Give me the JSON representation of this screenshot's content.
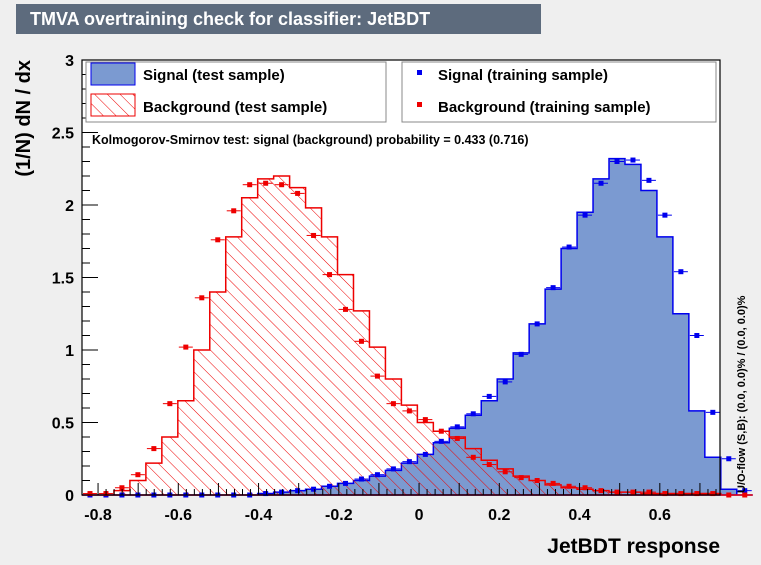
{
  "title": "TMVA overtraining check for classifier: JetBDT",
  "chart_data": {
    "type": "histogram",
    "xlabel": "JetBDT response",
    "ylabel": "(1/N) dN / dx",
    "xlim": [
      -0.84,
      0.75
    ],
    "ylim": [
      0,
      3
    ],
    "x_ticks": [
      "-0.8",
      "-0.6",
      "-0.4",
      "-0.2",
      "0",
      "0.2",
      "0.4",
      "0.6"
    ],
    "y_ticks": [
      "0",
      "0.5",
      "1",
      "1.5",
      "2",
      "2.5",
      "3"
    ],
    "bin_edges_start": -0.84,
    "bin_width": 0.0398,
    "series": [
      {
        "name": "Signal (test sample)",
        "style": "filled-histogram",
        "color": "#7b9ad1",
        "line_color": "#0000ee",
        "values": [
          0,
          0,
          0,
          0,
          0,
          0,
          0,
          0,
          0,
          0,
          0,
          0.01,
          0.02,
          0.03,
          0.04,
          0.06,
          0.08,
          0.1,
          0.13,
          0.17,
          0.22,
          0.28,
          0.36,
          0.46,
          0.55,
          0.65,
          0.8,
          0.98,
          1.18,
          1.42,
          1.7,
          1.95,
          2.18,
          2.32,
          2.28,
          2.1,
          1.78,
          1.25,
          0.58,
          0.26,
          0.04,
          0
        ]
      },
      {
        "name": "Background (test sample)",
        "style": "hatched-histogram",
        "color": "#ee0000",
        "values": [
          0,
          0,
          0.03,
          0.1,
          0.22,
          0.4,
          0.65,
          1.0,
          1.4,
          1.78,
          2.05,
          2.18,
          2.2,
          2.12,
          1.98,
          1.78,
          1.52,
          1.27,
          1.02,
          0.8,
          0.62,
          0.5,
          0.44,
          0.4,
          0.32,
          0.24,
          0.18,
          0.13,
          0.1,
          0.07,
          0.05,
          0.04,
          0.03,
          0.02,
          0.02,
          0.01,
          0.01,
          0.01,
          0.01,
          0.01,
          0,
          0
        ]
      },
      {
        "name": "Signal (training sample)",
        "style": "points",
        "color": "#0000ee",
        "values": [
          0,
          0,
          0,
          0,
          0,
          0,
          0,
          0,
          0,
          0,
          0,
          0.01,
          0.02,
          0.03,
          0.04,
          0.06,
          0.08,
          0.11,
          0.14,
          0.18,
          0.23,
          0.28,
          0.37,
          0.47,
          0.56,
          0.68,
          0.78,
          0.97,
          1.18,
          1.43,
          1.71,
          1.93,
          2.15,
          2.3,
          2.31,
          2.17,
          1.93,
          1.54,
          1.1,
          0.57,
          0.25,
          0.03
        ]
      },
      {
        "name": "Background (training sample)",
        "style": "points",
        "color": "#ee0000",
        "values": [
          0.01,
          0.01,
          0.05,
          0.14,
          0.32,
          0.63,
          1.02,
          1.36,
          1.76,
          1.96,
          2.14,
          2.15,
          2.14,
          2.08,
          1.79,
          1.52,
          1.28,
          1.06,
          0.82,
          0.63,
          0.58,
          0.52,
          0.44,
          0.39,
          0.26,
          0.21,
          0.16,
          0.12,
          0.1,
          0.08,
          0.06,
          0.05,
          0.03,
          0.02,
          0.02,
          0.02,
          0.01,
          0.01,
          0.01,
          0.01,
          0,
          0
        ]
      }
    ],
    "legend": [
      {
        "label": "Signal (test sample)",
        "symbol": "filled"
      },
      {
        "label": "Background (test sample)",
        "symbol": "hatched"
      },
      {
        "label": "Signal (training sample)",
        "symbol": "blue-point"
      },
      {
        "label": "Background (training sample)",
        "symbol": "red-point"
      }
    ],
    "annotation": "Kolmogorov-Smirnov test: signal (background) probability = 0.433 (0.716)",
    "side_note": "U/O-flow (S,B): (0.0, 0.0)% / (0.0, 0.0)%"
  }
}
